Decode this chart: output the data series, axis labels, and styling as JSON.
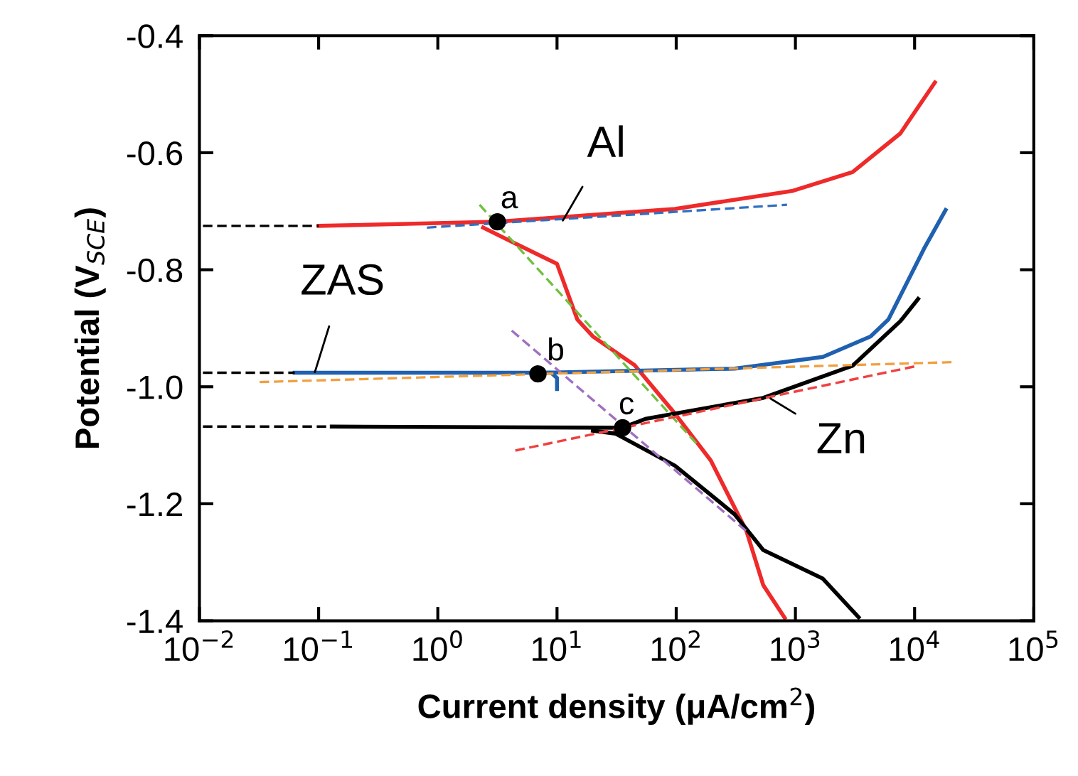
{
  "chart_data": {
    "type": "line",
    "xlabel": "Current density (μA/cm$^{2}$)",
    "ylabel": "Potential (V$_{SCE}$)",
    "log": "x",
    "grid": false,
    "legend": false,
    "xlim": [
      0.01,
      100000
    ],
    "ylim": [
      -1.4,
      -0.4
    ],
    "xticks": [
      {
        "value": 0.01,
        "label": "10$^{−2}$"
      },
      {
        "value": 0.1,
        "label": "10$^{−1}$"
      },
      {
        "value": 1,
        "label": "10$^{0}$"
      },
      {
        "value": 10,
        "label": "10$^{1}$"
      },
      {
        "value": 100,
        "label": "10$^{2}$"
      },
      {
        "value": 1000,
        "label": "10$^{3}$"
      },
      {
        "value": 10000,
        "label": "10$^{4}$"
      },
      {
        "value": 100000,
        "label": "10$^{5}$"
      }
    ],
    "yticks": [
      -1.4,
      -1.2,
      {
        "value": -1.0,
        "label": "-1.0"
      },
      -0.8,
      -0.6,
      -0.4
    ],
    "series": [
      {
        "color": "#ee2a2a",
        "x": [
          0.1,
          3.16,
          97.7,
          955,
          3020,
          7590,
          14800
        ],
        "values": [
          -0.725,
          -0.718,
          -0.696,
          -0.665,
          -0.633,
          -0.567,
          -0.48
        ]
      },
      {
        "color": "#ee2a2a",
        "x": [
          2.4,
          3.98,
          10,
          14.8,
          20,
          44.7,
          97.7,
          195,
          389,
          537,
          813
        ],
        "values": [
          -0.728,
          -0.75,
          -0.79,
          -0.885,
          -0.914,
          -0.963,
          -1.046,
          -1.126,
          -1.247,
          -1.339,
          -1.395
        ]
      },
      {
        "color": "#2060b0",
        "x": [
          0.063,
          8.91,
          10,
          10
        ],
        "values": [
          -0.976,
          -0.976,
          -0.985,
          -1.004
        ]
      },
      {
        "color": "#2060b0",
        "x": [
          7.94,
          309,
          1700,
          4270,
          6030,
          12000,
          18200
        ],
        "values": [
          -0.976,
          -0.969,
          -0.949,
          -0.914,
          -0.885,
          -0.764,
          -0.698
        ]
      },
      {
        "color": "#000000",
        "x": [
          0.129,
          35.5,
          55,
          537,
          3020,
          7590,
          10700
        ],
        "values": [
          -1.068,
          -1.07,
          -1.055,
          -1.019,
          -0.964,
          -0.888,
          -0.85
        ]
      },
      {
        "color": "#000000",
        "x": [
          20,
          30.9,
          97.7,
          309,
          537,
          1700,
          3390
        ],
        "values": [
          -1.075,
          -1.08,
          -1.135,
          -1.218,
          -1.279,
          -1.328,
          -1.394
        ]
      },
      {
        "color": "#3070c0",
        "line_style": "dashed",
        "x": [
          0.81,
          851
        ],
        "values": [
          -0.728,
          -0.689
        ]
      },
      {
        "color": "#70c040",
        "line_style": "dashed",
        "x": [
          2.24,
          148
        ],
        "values": [
          -0.689,
          -1.097
        ]
      },
      {
        "color": "#a070c0",
        "line_style": "dashed",
        "x": [
          4.17,
          389
        ],
        "values": [
          -0.904,
          -1.247
        ]
      },
      {
        "color": "#f0a040",
        "line_style": "dashed",
        "x": [
          0.032,
          20400
        ],
        "values": [
          -0.992,
          -0.958
        ]
      },
      {
        "color": "#f04040",
        "line_style": "dashed",
        "x": [
          4.47,
          10700
        ],
        "values": [
          -1.109,
          -0.964
        ]
      },
      {
        "color": "#000000",
        "line_style": "dashed",
        "x": [
          0.0107,
          0.1
        ],
        "values": [
          -0.725,
          -0.725
        ]
      },
      {
        "color": "#000000",
        "line_style": "dashed",
        "x": [
          0.0107,
          0.063
        ],
        "values": [
          -0.976,
          -0.976
        ]
      },
      {
        "color": "#000000",
        "line_style": "dashed",
        "x": [
          0.0107,
          0.129
        ],
        "values": [
          -1.068,
          -1.068
        ]
      },
      {
        "type": "scatter",
        "marker": "circle",
        "color": "#000000",
        "x": [
          3.16,
          6.92,
          35.5
        ],
        "values": [
          -0.718,
          -0.978,
          -1.07
        ]
      }
    ],
    "annotations": [
      {
        "text": "a",
        "x": 3.16,
        "y": -0.718
      },
      {
        "text": "b",
        "x": 6.92,
        "y": -0.978
      },
      {
        "text": "c",
        "x": 35.5,
        "y": -1.07
      },
      {
        "text": "Al",
        "x": 11.2,
        "y": -0.716
      },
      {
        "text": "ZAS",
        "x": 0.093,
        "y": -0.975
      },
      {
        "text": "Zn",
        "x": 617,
        "y": -1.02
      }
    ]
  }
}
